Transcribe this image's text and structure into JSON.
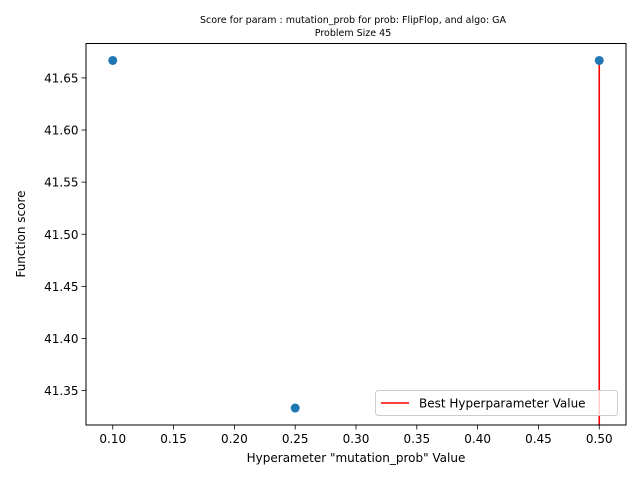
{
  "chart_data": {
    "type": "scatter",
    "title_line1": "Score for param : mutation_prob for prob: FlipFlop, and algo: GA",
    "title_line2": "Problem Size 45",
    "xlabel": "Hyperameter \"mutation_prob\" Value",
    "ylabel": "Function score",
    "xlim": [
      0.078,
      0.522
    ],
    "ylim": [
      41.317,
      41.683
    ],
    "xticks": [
      0.1,
      0.15,
      0.2,
      0.25,
      0.3,
      0.35,
      0.4,
      0.45,
      0.5
    ],
    "xtick_labels": [
      "0.10",
      "0.15",
      "0.20",
      "0.25",
      "0.30",
      "0.35",
      "0.40",
      "0.45",
      "0.50"
    ],
    "yticks": [
      41.35,
      41.4,
      41.45,
      41.5,
      41.55,
      41.6,
      41.65
    ],
    "ytick_labels": [
      "41.35",
      "41.40",
      "41.45",
      "41.50",
      "41.55",
      "41.60",
      "41.65"
    ],
    "points": [
      {
        "x": 0.1,
        "y": 41.6667
      },
      {
        "x": 0.25,
        "y": 41.3333
      },
      {
        "x": 0.5,
        "y": 41.6667
      }
    ],
    "best_line": {
      "x": 0.5,
      "y_from": 41.317,
      "y_to": 41.6667
    },
    "legend": {
      "label": "Best Hyperparameter Value",
      "placement": "lower-right"
    },
    "colors": {
      "points": "#1f77b4",
      "best_line": "#ff0000"
    },
    "grid": false
  }
}
